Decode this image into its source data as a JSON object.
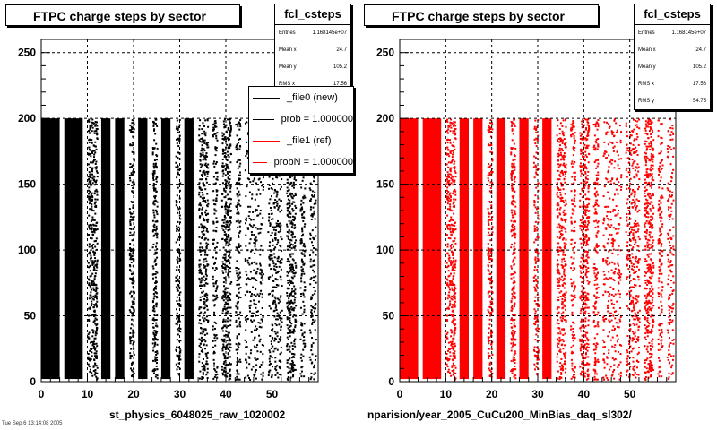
{
  "colors": {
    "new": "#000000",
    "ref": "#ff0000"
  },
  "panels": [
    {
      "title": "FTPC charge steps by sector",
      "stats": {
        "name": "fcl_csteps",
        "rows": [
          [
            "Entries",
            "1.168145e+07"
          ],
          [
            "Mean x",
            "24.7"
          ],
          [
            "Mean y",
            "105.2"
          ],
          [
            "RMS x",
            "17.56"
          ]
        ]
      },
      "xtitle": "st_physics_6048025_raw_1020002"
    },
    {
      "title": "FTPC charge steps by sector",
      "stats": {
        "name": "fcl_csteps",
        "rows": [
          [
            "Entries",
            "1.168145e+07"
          ],
          [
            "Mean x",
            "24.7"
          ],
          [
            "Mean y",
            "105.2"
          ],
          [
            "RMS x",
            "17.56"
          ],
          [
            "RMS y",
            "54.75"
          ]
        ]
      },
      "xtitle": "nparision/year_2005_CuCu200_MinBias_daq_sl302/"
    }
  ],
  "legend": [
    {
      "label": "_file0 (new)",
      "color": "#000000"
    },
    {
      "label": "prob = 1.000000",
      "color": "#000000"
    },
    {
      "label": "_file1 (ref)",
      "color": "#ff0000"
    },
    {
      "label": "probN = 1.000000",
      "color": "#ff0000"
    }
  ],
  "timestamp": "Tue Sep 6 13:14:08 2005",
  "chart_data": [
    {
      "type": "scatter",
      "series": [
        {
          "name": "_file0 (new)",
          "color": "#000000"
        }
      ],
      "title": "FTPC charge steps by sector",
      "xlabel": "st_physics_6048025_raw_1020002",
      "ylabel": "",
      "xlim": [
        0,
        60
      ],
      "ylim": [
        0,
        260
      ],
      "x_ticks": [
        0,
        10,
        20,
        30,
        40,
        50
      ],
      "y_ticks": [
        0,
        50,
        100,
        150,
        200,
        250
      ],
      "fill_top": 200,
      "bands": [
        [
          0,
          4,
          0.94
        ],
        [
          5,
          9,
          0.99
        ],
        [
          10,
          12,
          0.82
        ],
        [
          13,
          15,
          0.96
        ],
        [
          16,
          18,
          0.99
        ],
        [
          19,
          20,
          0.78
        ],
        [
          21,
          23,
          0.97
        ],
        [
          24,
          25,
          0.9
        ],
        [
          26,
          28,
          0.97
        ],
        [
          29,
          30,
          0.62
        ],
        [
          31,
          33,
          0.97
        ],
        [
          34,
          36,
          0.7
        ],
        [
          37,
          38,
          0.55
        ],
        [
          39,
          41,
          0.8
        ],
        [
          42,
          43,
          0.65
        ],
        [
          44,
          48,
          0.3
        ],
        [
          49,
          52,
          0.45
        ],
        [
          53,
          55,
          0.85
        ],
        [
          56,
          57,
          0.55
        ],
        [
          58,
          59.4,
          0.4
        ]
      ],
      "grid": true
    },
    {
      "type": "scatter",
      "series": [
        {
          "name": "_file1 (ref)",
          "color": "#ff0000"
        }
      ],
      "title": "FTPC charge steps by sector",
      "xlabel": "nparision/year_2005_CuCu200_MinBias_daq_sl302/",
      "ylabel": "",
      "xlim": [
        0,
        60
      ],
      "ylim": [
        0,
        260
      ],
      "x_ticks": [
        0,
        10,
        20,
        30,
        40,
        50
      ],
      "y_ticks": [
        0,
        50,
        100,
        150,
        200,
        250
      ],
      "fill_top": 200,
      "bands": [
        [
          0,
          4,
          0.94
        ],
        [
          5,
          9,
          0.99
        ],
        [
          10,
          12,
          0.82
        ],
        [
          13,
          15,
          0.96
        ],
        [
          16,
          18,
          0.99
        ],
        [
          19,
          20,
          0.78
        ],
        [
          21,
          23,
          0.97
        ],
        [
          24,
          25,
          0.9
        ],
        [
          26,
          28,
          0.97
        ],
        [
          29,
          30,
          0.62
        ],
        [
          31,
          33,
          0.97
        ],
        [
          34,
          36,
          0.7
        ],
        [
          37,
          38,
          0.55
        ],
        [
          39,
          41,
          0.8
        ],
        [
          42,
          43,
          0.65
        ],
        [
          44,
          48,
          0.3
        ],
        [
          49,
          52,
          0.45
        ],
        [
          53,
          55,
          0.85
        ],
        [
          56,
          57,
          0.55
        ],
        [
          58,
          59.4,
          0.4
        ]
      ],
      "grid": true
    }
  ]
}
